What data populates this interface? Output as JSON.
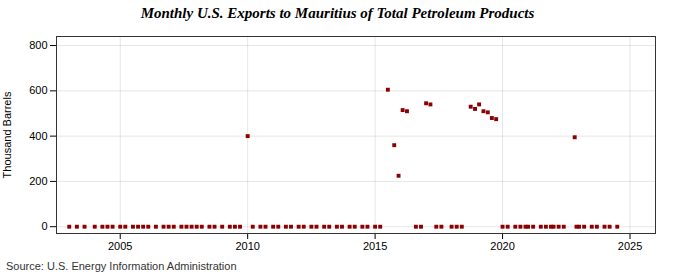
{
  "chart_data": {
    "type": "scatter",
    "title": "Monthly U.S. Exports to Mauritius of Total Petroleum Products",
    "ylabel": "Thousand Barrels",
    "annotations": [
      "Source: U.S. Energy Information Administration"
    ],
    "color": "#8b0000",
    "marker": "square",
    "grid": true,
    "xlim": [
      2002.5,
      2026.0
    ],
    "ylim": [
      -30,
      840
    ],
    "xticks": [
      2005,
      2010,
      2015,
      2020,
      2025
    ],
    "yticks": [
      0,
      200,
      400,
      600,
      800
    ],
    "x": [
      2003.0,
      2003.3,
      2003.6,
      2004.0,
      2004.3,
      2004.5,
      2004.7,
      2005.0,
      2005.2,
      2005.5,
      2005.7,
      2005.9,
      2006.1,
      2006.4,
      2006.7,
      2006.9,
      2007.1,
      2007.4,
      2007.6,
      2007.8,
      2008.0,
      2008.2,
      2008.5,
      2008.7,
      2009.0,
      2009.3,
      2009.5,
      2009.7,
      2010.0,
      2010.2,
      2010.5,
      2010.7,
      2011.0,
      2011.2,
      2011.5,
      2011.7,
      2012.0,
      2012.2,
      2012.5,
      2012.7,
      2013.0,
      2013.2,
      2013.5,
      2013.7,
      2014.0,
      2014.2,
      2014.5,
      2014.7,
      2015.0,
      2015.2,
      2015.5,
      2015.75,
      2015.92,
      2016.08,
      2016.25,
      2016.6,
      2016.8,
      2017.0,
      2017.17,
      2017.4,
      2017.6,
      2018.0,
      2018.2,
      2018.4,
      2018.75,
      2018.92,
      2019.08,
      2019.25,
      2019.42,
      2019.58,
      2019.75,
      2020.0,
      2020.2,
      2020.5,
      2020.7,
      2020.9,
      2021.0,
      2021.2,
      2021.5,
      2021.7,
      2021.9,
      2022.0,
      2022.2,
      2022.4,
      2022.83,
      2022.9,
      2023.0,
      2023.2,
      2023.5,
      2023.7,
      2024.0,
      2024.2,
      2024.5
    ],
    "values": [
      0,
      0,
      0,
      0,
      0,
      0,
      0,
      0,
      0,
      0,
      0,
      0,
      0,
      0,
      0,
      0,
      0,
      0,
      0,
      0,
      0,
      0,
      0,
      0,
      0,
      0,
      0,
      0,
      400,
      0,
      0,
      0,
      0,
      0,
      0,
      0,
      0,
      0,
      0,
      0,
      0,
      0,
      0,
      0,
      0,
      0,
      0,
      0,
      0,
      0,
      605,
      360,
      225,
      515,
      510,
      0,
      0,
      545,
      540,
      0,
      0,
      0,
      0,
      0,
      530,
      520,
      540,
      510,
      505,
      480,
      475,
      0,
      0,
      0,
      0,
      0,
      0,
      0,
      0,
      0,
      0,
      0,
      0,
      0,
      395,
      0,
      0,
      0,
      0,
      0,
      0,
      0,
      0
    ]
  }
}
